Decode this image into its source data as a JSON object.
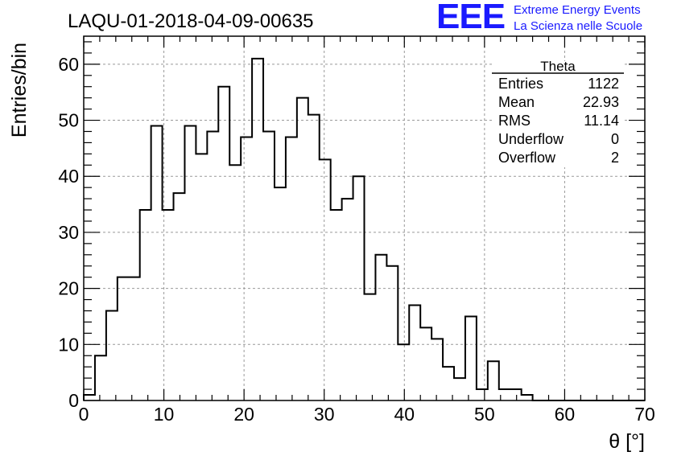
{
  "chart_data": {
    "type": "bar",
    "title": "LAQU-01-2018-04-09-00635",
    "xlabel": "θ [°]",
    "ylabel": "Entries/bin",
    "xlim": [
      0,
      70
    ],
    "ylim": [
      0,
      65
    ],
    "xticks": [
      0,
      10,
      20,
      30,
      40,
      50,
      60,
      70
    ],
    "yticks": [
      0,
      10,
      20,
      30,
      40,
      50,
      60
    ],
    "grid": true,
    "bin_width": 1.4,
    "bin_edges_start": 0,
    "values": [
      1,
      8,
      16,
      22,
      22,
      34,
      49,
      34,
      37,
      49,
      44,
      48,
      56,
      42,
      47,
      61,
      48,
      38,
      47,
      54,
      51,
      43,
      34,
      36,
      40,
      19,
      26,
      24,
      10,
      17,
      13,
      11,
      6,
      4,
      15,
      2,
      7,
      2,
      2,
      1,
      0,
      0,
      0,
      0,
      0,
      0,
      0,
      0,
      0,
      0
    ],
    "stats": {
      "name": "Theta",
      "rows": [
        {
          "label": "Entries",
          "value": "1122"
        },
        {
          "label": "Mean",
          "value": "22.93"
        },
        {
          "label": "RMS",
          "value": "11.14"
        },
        {
          "label": "Underflow",
          "value": "0"
        },
        {
          "label": "Overflow",
          "value": "2"
        }
      ]
    }
  },
  "logo": {
    "mark": "EEE",
    "line1": "Extreme Energy Events",
    "line2": "La Scienza nelle Scuole",
    "color": "#1a1aff"
  }
}
